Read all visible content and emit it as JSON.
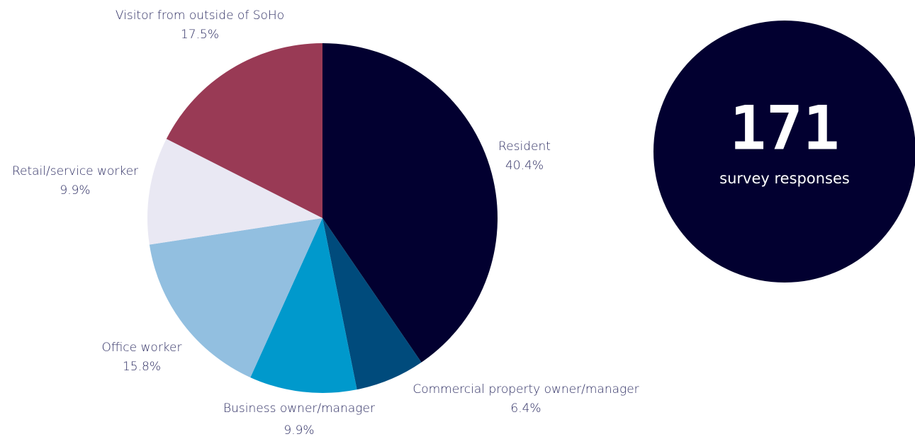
{
  "chart_data": {
    "type": "pie",
    "categories": [
      "Resident",
      "Commercial property owner/manager",
      "Business owner/manager",
      "Office worker",
      "Retail/service worker",
      "Visitor from outside of SoHo"
    ],
    "values": [
      40.4,
      6.4,
      9.9,
      15.8,
      9.9,
      17.5
    ],
    "value_labels": [
      "40.4%",
      "6.4%",
      "9.9%",
      "15.8%",
      "9.9%",
      "17.5%"
    ],
    "colors": [
      "#020030",
      "#004b7c",
      "#0099cc",
      "#92bfe0",
      "#e9e8f3",
      "#993a55"
    ]
  },
  "callout": {
    "number": 171,
    "text": "survey responses"
  }
}
